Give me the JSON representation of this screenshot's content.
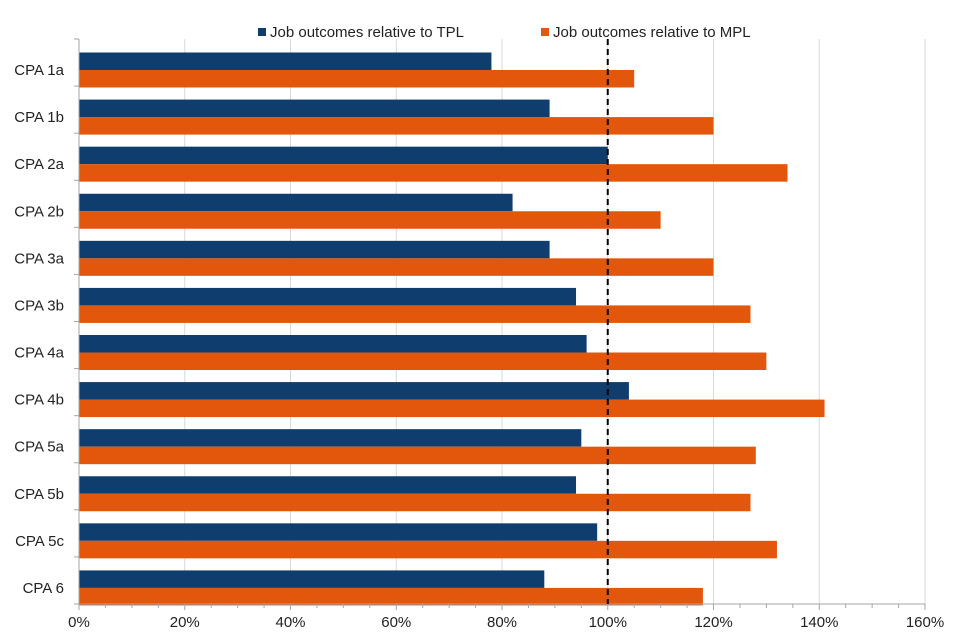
{
  "chart_data": {
    "type": "bar",
    "orientation": "horizontal",
    "title": "",
    "xlabel": "",
    "ylabel": "",
    "categories": [
      "CPA 1a",
      "CPA 1b",
      "CPA 2a",
      "CPA 2b",
      "CPA 3a",
      "CPA 3b",
      "CPA 4a",
      "CPA 4b",
      "CPA 5a",
      "CPA 5b",
      "CPA 5c",
      "CPA 6"
    ],
    "series": [
      {
        "name": "Job outcomes relative to TPL",
        "color": "#0e3d6e",
        "values": [
          78,
          89,
          100,
          82,
          89,
          94,
          96,
          104,
          95,
          94,
          98,
          88
        ]
      },
      {
        "name": "Job outcomes relative to MPL",
        "color": "#e2570c",
        "values": [
          105,
          120,
          134,
          110,
          120,
          127,
          130,
          141,
          128,
          127,
          132,
          118
        ]
      }
    ],
    "xlim": [
      0,
      160
    ],
    "xticks": [
      "0%",
      "20%",
      "40%",
      "60%",
      "80%",
      "100%",
      "120%",
      "140%",
      "160%"
    ],
    "xtick_values": [
      0,
      20,
      40,
      60,
      80,
      100,
      120,
      140,
      160
    ],
    "reference_line": {
      "value": 100,
      "style": "dashed"
    },
    "legend_position": "top",
    "grid": true
  }
}
